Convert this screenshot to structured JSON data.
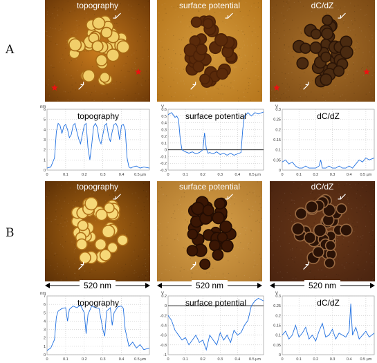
{
  "rows": [
    {
      "label": "A",
      "image_titles": [
        "topography",
        "surface potential",
        "dC/dZ"
      ],
      "scale_text": "",
      "charts": [
        {
          "title": "topography",
          "unit": "nm",
          "yticks": [
            "0",
            "1",
            "2",
            "3",
            "4",
            "5",
            "6"
          ],
          "xticks": [
            "0",
            "0.1",
            "0.2",
            "0.3",
            "0.4",
            "0.5 µm"
          ]
        },
        {
          "title": "surface potential",
          "unit": "V",
          "yticks": [
            "-0.3",
            "-0.2",
            "-0.1",
            "0",
            "0.1",
            "0.2",
            "0.3",
            "0.4",
            "0.5",
            "0.6"
          ],
          "xticks": [
            "0",
            "0.1",
            "0.2",
            "0.3",
            "0.4",
            "0.5 µm"
          ]
        },
        {
          "title": "dC/dZ",
          "unit": "V",
          "yticks": [
            "0",
            "0.05",
            "0.1",
            "0.15",
            "0.2",
            "0.25",
            "0.3"
          ],
          "xticks": [
            "0",
            "0.1",
            "0.2",
            "0.3",
            "0.4",
            "0.5 µm"
          ]
        }
      ]
    },
    {
      "label": "B",
      "image_titles": [
        "topography",
        "surface potential",
        "dC/dZ"
      ],
      "scale_text": "520 nm",
      "charts": [
        {
          "title": "topography",
          "unit": "nm",
          "yticks": [
            "0",
            "1",
            "2",
            "3",
            "4",
            "5",
            "6",
            "7"
          ],
          "xticks": [
            "0",
            "0.1",
            "0.2",
            "0.3",
            "0.4",
            "0.5 µm"
          ]
        },
        {
          "title": "surface potential",
          "unit": "V",
          "yticks": [
            "-1",
            "-0.8",
            "-0.6",
            "-0.4",
            "-0.2",
            "0",
            "0.2"
          ],
          "xticks": [
            "0",
            "0.1",
            "0.2",
            "0.3",
            "0.4",
            "0.5 µm"
          ]
        },
        {
          "title": "dC/dZ",
          "unit": "V",
          "yticks": [
            "0",
            "0.05",
            "0.1",
            "0.15",
            "0.2",
            "0.25",
            "0.3"
          ],
          "xticks": [
            "0",
            "0.1",
            "0.2",
            "0.3",
            "0.4",
            "0.5 µm"
          ]
        }
      ]
    }
  ],
  "chart_data": [
    {
      "type": "line",
      "title": "topography",
      "ylabel": "nm",
      "xlabel": "µm",
      "xlim": [
        0,
        0.55
      ],
      "ylim": [
        0,
        6
      ],
      "series": [
        {
          "color": "#1f6fe0",
          "x": [
            0,
            0.02,
            0.04,
            0.05,
            0.06,
            0.07,
            0.08,
            0.09,
            0.1,
            0.11,
            0.12,
            0.13,
            0.14,
            0.15,
            0.16,
            0.17,
            0.18,
            0.19,
            0.2,
            0.21,
            0.22,
            0.23,
            0.24,
            0.25,
            0.26,
            0.27,
            0.28,
            0.29,
            0.3,
            0.31,
            0.32,
            0.33,
            0.34,
            0.35,
            0.36,
            0.37,
            0.38,
            0.39,
            0.4,
            0.41,
            0.42,
            0.43,
            0.44,
            0.45,
            0.46,
            0.48,
            0.5,
            0.52,
            0.55
          ],
          "y": [
            0.2,
            0.3,
            1.2,
            3.8,
            4.6,
            4.4,
            3.6,
            4.3,
            4.5,
            4.0,
            3.2,
            3.5,
            4.4,
            4.6,
            3.8,
            3.1,
            2.6,
            3.5,
            4.4,
            4.6,
            2.2,
            1.0,
            2.5,
            4.3,
            4.6,
            4.2,
            3.0,
            2.6,
            3.5,
            4.4,
            4.6,
            3.4,
            2.8,
            3.8,
            4.5,
            4.6,
            4.2,
            3.0,
            4.4,
            4.5,
            4.0,
            1.2,
            0.3,
            0.2,
            0.3,
            0.4,
            0.2,
            0.3,
            0.2
          ]
        }
      ]
    },
    {
      "type": "line",
      "title": "surface potential",
      "ylabel": "V",
      "xlabel": "µm",
      "xlim": [
        0,
        0.55
      ],
      "ylim": [
        -0.3,
        0.6
      ],
      "series": [
        {
          "color": "#1f6fe0",
          "x": [
            0,
            0.02,
            0.04,
            0.05,
            0.06,
            0.07,
            0.08,
            0.1,
            0.12,
            0.14,
            0.16,
            0.18,
            0.2,
            0.21,
            0.22,
            0.23,
            0.24,
            0.26,
            0.28,
            0.3,
            0.32,
            0.34,
            0.36,
            0.38,
            0.4,
            0.42,
            0.43,
            0.44,
            0.45,
            0.46,
            0.48,
            0.5,
            0.52,
            0.55
          ],
          "y": [
            0.52,
            0.55,
            0.48,
            0.5,
            0.45,
            0.15,
            0.0,
            -0.03,
            -0.05,
            -0.03,
            -0.06,
            -0.04,
            0.0,
            0.25,
            0.02,
            -0.05,
            -0.04,
            -0.06,
            -0.03,
            -0.07,
            -0.05,
            -0.08,
            -0.05,
            -0.08,
            -0.06,
            -0.04,
            0.3,
            0.5,
            0.52,
            0.55,
            0.5,
            0.55,
            0.53,
            0.56
          ]
        }
      ]
    },
    {
      "type": "line",
      "title": "dC/dZ",
      "ylabel": "V",
      "xlabel": "µm",
      "xlim": [
        0,
        0.55
      ],
      "ylim": [
        0,
        0.3
      ],
      "series": [
        {
          "color": "#1f6fe0",
          "x": [
            0,
            0.02,
            0.04,
            0.06,
            0.08,
            0.1,
            0.12,
            0.14,
            0.16,
            0.18,
            0.2,
            0.22,
            0.23,
            0.24,
            0.26,
            0.28,
            0.3,
            0.32,
            0.34,
            0.36,
            0.38,
            0.4,
            0.42,
            0.44,
            0.46,
            0.48,
            0.5,
            0.52,
            0.55
          ],
          "y": [
            0.04,
            0.05,
            0.03,
            0.04,
            0.02,
            0.01,
            0.01,
            0.02,
            0.01,
            0.01,
            0.01,
            0.02,
            0.05,
            0.01,
            0.01,
            0.02,
            0.01,
            0.01,
            0.02,
            0.01,
            0.01,
            0.02,
            0.01,
            0.03,
            0.05,
            0.04,
            0.06,
            0.05,
            0.06
          ]
        }
      ]
    },
    {
      "type": "line",
      "title": "topography",
      "ylabel": "nm",
      "xlabel": "µm",
      "xlim": [
        0,
        0.55
      ],
      "ylim": [
        0,
        7
      ],
      "series": [
        {
          "color": "#1f6fe0",
          "x": [
            0,
            0.02,
            0.04,
            0.05,
            0.06,
            0.08,
            0.1,
            0.11,
            0.12,
            0.14,
            0.16,
            0.18,
            0.2,
            0.21,
            0.22,
            0.24,
            0.26,
            0.28,
            0.3,
            0.31,
            0.32,
            0.34,
            0.35,
            0.36,
            0.38,
            0.4,
            0.41,
            0.42,
            0.44,
            0.46,
            0.48,
            0.5,
            0.52,
            0.55
          ],
          "y": [
            0.5,
            0.8,
            1.8,
            4.5,
            5.2,
            5.5,
            5.6,
            4.0,
            5.4,
            5.8,
            5.6,
            5.9,
            5.0,
            2.5,
            4.8,
            5.8,
            5.6,
            5.5,
            3.0,
            2.2,
            5.2,
            5.6,
            3.5,
            5.0,
            5.7,
            5.8,
            5.5,
            3.0,
            1.0,
            1.5,
            0.8,
            1.2,
            0.6,
            0.8
          ]
        }
      ]
    },
    {
      "type": "line",
      "title": "surface potential",
      "ylabel": "V",
      "xlabel": "µm",
      "xlim": [
        0,
        0.55
      ],
      "ylim": [
        -1,
        0.2
      ],
      "series": [
        {
          "color": "#1f6fe0",
          "x": [
            0,
            0.02,
            0.04,
            0.06,
            0.08,
            0.1,
            0.12,
            0.14,
            0.16,
            0.18,
            0.2,
            0.22,
            0.24,
            0.26,
            0.28,
            0.3,
            0.32,
            0.34,
            0.36,
            0.38,
            0.4,
            0.42,
            0.44,
            0.46,
            0.48,
            0.5,
            0.52,
            0.55
          ],
          "y": [
            -0.2,
            -0.3,
            -0.5,
            -0.6,
            -0.7,
            -0.65,
            -0.8,
            -0.7,
            -0.6,
            -0.75,
            -0.7,
            -0.9,
            -0.6,
            -0.7,
            -0.8,
            -0.55,
            -0.7,
            -0.6,
            -0.75,
            -0.5,
            -0.6,
            -0.55,
            -0.4,
            -0.3,
            0.0,
            0.1,
            0.15,
            0.1
          ]
        }
      ]
    },
    {
      "type": "line",
      "title": "dC/dZ",
      "ylabel": "V",
      "xlabel": "µm",
      "xlim": [
        0,
        0.55
      ],
      "ylim": [
        0,
        0.3
      ],
      "series": [
        {
          "color": "#1f6fe0",
          "x": [
            0,
            0.02,
            0.04,
            0.06,
            0.08,
            0.1,
            0.12,
            0.14,
            0.16,
            0.18,
            0.2,
            0.22,
            0.24,
            0.26,
            0.28,
            0.3,
            0.32,
            0.34,
            0.36,
            0.38,
            0.4,
            0.41,
            0.42,
            0.44,
            0.46,
            0.48,
            0.5,
            0.52,
            0.55
          ],
          "y": [
            0.1,
            0.12,
            0.08,
            0.1,
            0.15,
            0.09,
            0.11,
            0.14,
            0.08,
            0.1,
            0.07,
            0.12,
            0.16,
            0.09,
            0.1,
            0.13,
            0.08,
            0.11,
            0.1,
            0.09,
            0.12,
            0.26,
            0.1,
            0.14,
            0.08,
            0.1,
            0.12,
            0.09,
            0.11
          ]
        }
      ]
    }
  ]
}
